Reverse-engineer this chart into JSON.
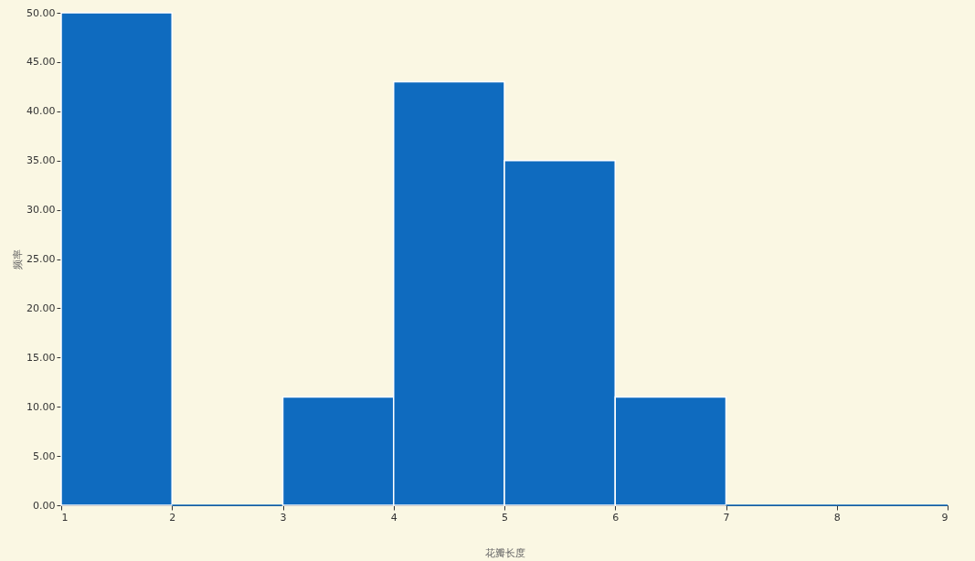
{
  "chart_data": {
    "type": "histogram",
    "xlabel": "花瓣长度",
    "ylabel": "频率",
    "bins": [
      1,
      2,
      3,
      4,
      5,
      6,
      7,
      8,
      9
    ],
    "values": [
      50,
      0,
      11,
      43,
      35,
      11,
      0,
      0
    ],
    "color": "#0f6bbf",
    "xlim": [
      1,
      9
    ],
    "xticks": [
      1,
      2,
      3,
      4,
      5,
      6,
      7,
      8,
      9
    ],
    "ylim": [
      0,
      50
    ],
    "yticks": [
      {
        "value": 0,
        "label": "0.00"
      },
      {
        "value": 5,
        "label": "5.00"
      },
      {
        "value": 10,
        "label": "10.00"
      },
      {
        "value": 15,
        "label": "15.00"
      },
      {
        "value": 20,
        "label": "20.00"
      },
      {
        "value": 25,
        "label": "25.00"
      },
      {
        "value": 30,
        "label": "30.00"
      },
      {
        "value": 35,
        "label": "35.00"
      },
      {
        "value": 40,
        "label": "40.00"
      },
      {
        "value": 45,
        "label": "45.00"
      },
      {
        "value": 50,
        "label": "50.00"
      }
    ],
    "grid": false
  }
}
